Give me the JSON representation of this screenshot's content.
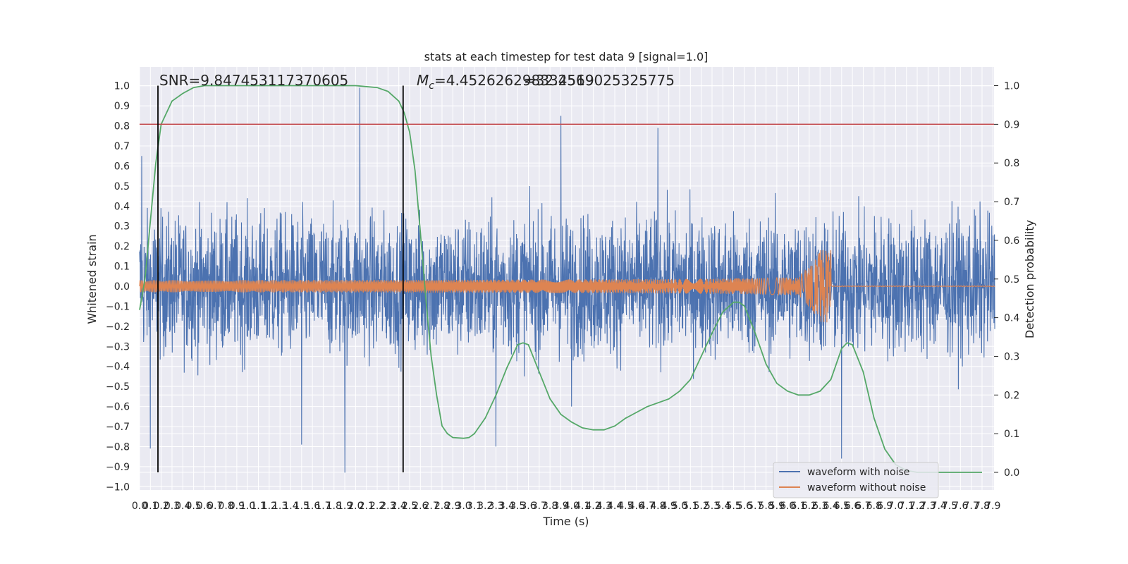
{
  "chart_data": {
    "type": "line",
    "title": "stats at each timestep for test data 9 [signal=1.0]",
    "xlabel": "Time (s)",
    "ylabel": "Whitened strain",
    "ylabel_right": "Detection probability",
    "xlim": [
      0.0,
      7.9
    ],
    "xticks": [
      "0.0",
      "0.1",
      "0.2",
      "0.3",
      "0.4",
      "0.5",
      "0.6",
      "0.7",
      "0.8",
      "0.9",
      "1.0",
      "1.1",
      "1.2",
      "1.3",
      "1.4",
      "1.5",
      "1.6",
      "1.7",
      "1.8",
      "1.9",
      "2.0",
      "2.1",
      "2.2",
      "2.3",
      "2.4",
      "2.5",
      "2.6",
      "2.7",
      "2.8",
      "2.9",
      "3.0",
      "3.1",
      "3.2",
      "3.3",
      "3.4",
      "3.5",
      "3.6",
      "3.7",
      "3.8",
      "3.9",
      "4.0",
      "4.1",
      "4.2",
      "4.3",
      "4.4",
      "4.5",
      "4.6",
      "4.7",
      "4.8",
      "4.9",
      "5.0",
      "5.1",
      "5.2",
      "5.3",
      "5.4",
      "5.5",
      "5.6",
      "5.7",
      "5.8",
      "5.9",
      "6.0",
      "6.1",
      "6.2",
      "6.3",
      "6.4",
      "6.5",
      "6.6",
      "6.7",
      "6.8",
      "6.9",
      "7.0",
      "7.1",
      "7.2",
      "7.3",
      "7.4",
      "7.5",
      "7.6",
      "7.7",
      "7.8",
      "7.9"
    ],
    "ylim_left": [
      -1.0,
      1.0
    ],
    "yticks_left": [
      "1.0",
      "0.9",
      "0.8",
      "0.7",
      "0.6",
      "0.5",
      "0.4",
      "0.3",
      "0.2",
      "0.1",
      "0.0",
      "−0.1",
      "−0.2",
      "−0.3",
      "−0.4",
      "−0.5",
      "−0.6",
      "−0.7",
      "−0.8",
      "−0.9",
      "−1.0"
    ],
    "ylim_right": [
      0.0,
      1.0
    ],
    "yticks_right": [
      "1.0",
      "0.9",
      "0.8",
      "0.7",
      "0.6",
      "0.5",
      "0.4",
      "0.3",
      "0.2",
      "0.1",
      "0.0"
    ],
    "grid": true,
    "legend_position": "bottom-right",
    "series": [
      {
        "name": "waveform with noise",
        "color": "#4c72b0",
        "axis": "left",
        "envelope_upper_typical": 0.42,
        "envelope_lower_typical": -0.36,
        "spikes": [
          [
            0.02,
            0.65
          ],
          [
            0.1,
            -0.81
          ],
          [
            2.04,
            0.99
          ],
          [
            1.9,
            -0.93
          ],
          [
            3.9,
            0.85
          ],
          [
            4.8,
            0.79
          ],
          [
            6.5,
            -0.86
          ],
          [
            4.0,
            -0.6
          ],
          [
            3.3,
            -0.8
          ],
          [
            1.5,
            -0.79
          ]
        ]
      },
      {
        "name": "waveform without noise",
        "color": "#dd8452",
        "axis": "left",
        "amplitude_start": 0.015,
        "amplitude_peak": 0.18,
        "peak_time": 6.4
      },
      {
        "name": "",
        "color": "#55a868",
        "axis": "right",
        "x": [
          0.0,
          0.05,
          0.1,
          0.15,
          0.2,
          0.3,
          0.4,
          0.5,
          0.6,
          0.8,
          1.0,
          1.5,
          2.0,
          2.2,
          2.3,
          2.4,
          2.45,
          2.5,
          2.55,
          2.6,
          2.65,
          2.7,
          2.75,
          2.8,
          2.85,
          2.9,
          3.0,
          3.05,
          3.1,
          3.2,
          3.3,
          3.4,
          3.5,
          3.55,
          3.6,
          3.7,
          3.8,
          3.9,
          4.0,
          4.1,
          4.2,
          4.3,
          4.4,
          4.5,
          4.6,
          4.7,
          4.8,
          4.9,
          5.0,
          5.1,
          5.2,
          5.3,
          5.4,
          5.5,
          5.55,
          5.6,
          5.7,
          5.8,
          5.9,
          6.0,
          6.1,
          6.2,
          6.3,
          6.4,
          6.5,
          6.55,
          6.6,
          6.7,
          6.8,
          6.9,
          7.0,
          7.1,
          7.2,
          7.3,
          7.4,
          7.5,
          7.6,
          7.7,
          7.8
        ],
        "values": [
          0.42,
          0.5,
          0.65,
          0.8,
          0.9,
          0.96,
          0.98,
          0.995,
          1.0,
          1.0,
          1.0,
          1.0,
          1.0,
          0.995,
          0.985,
          0.96,
          0.93,
          0.88,
          0.78,
          0.62,
          0.45,
          0.3,
          0.2,
          0.12,
          0.1,
          0.09,
          0.088,
          0.09,
          0.1,
          0.14,
          0.2,
          0.27,
          0.33,
          0.335,
          0.33,
          0.26,
          0.19,
          0.15,
          0.13,
          0.115,
          0.11,
          0.11,
          0.12,
          0.14,
          0.155,
          0.17,
          0.18,
          0.19,
          0.21,
          0.24,
          0.3,
          0.36,
          0.415,
          0.44,
          0.44,
          0.43,
          0.36,
          0.28,
          0.23,
          0.21,
          0.2,
          0.2,
          0.21,
          0.24,
          0.32,
          0.335,
          0.33,
          0.26,
          0.14,
          0.06,
          0.02,
          0.005,
          0.0,
          0.0,
          0.0,
          0.0,
          0.0,
          0.0,
          0.0
        ]
      },
      {
        "name": "",
        "color": "#c44e52",
        "axis": "right",
        "type": "hline",
        "value": 0.9
      }
    ],
    "vlines": [
      0.17,
      2.44
    ],
    "annotations": [
      "SNR=9.847453117370605",
      "$M_c$=4.452626298334519",
      "=32.2569025325775"
    ]
  },
  "annotations_text": {
    "snr_label": "SNR=9.847453117370605",
    "mc_symbol": "M",
    "mc_sub": "c",
    "mc_value": "=4.452626298334519",
    "overlap_value": "=32.2569025325775"
  }
}
